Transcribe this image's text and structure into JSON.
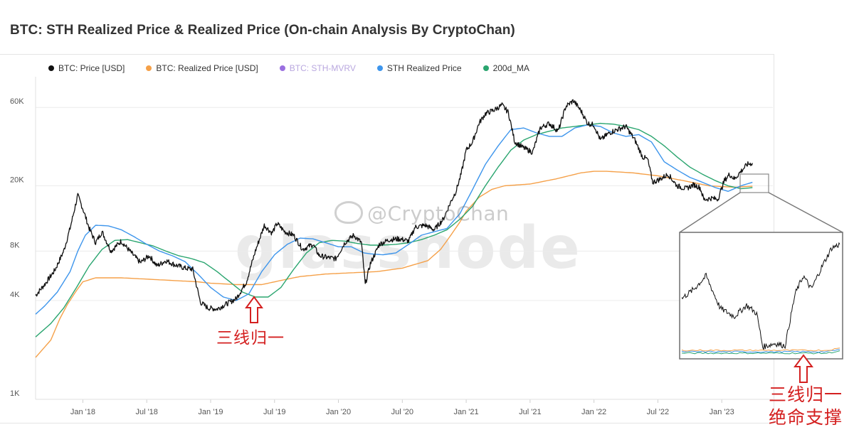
{
  "title": "BTC: STH Realized Price & Realized Price (On-chain Analysis By CryptoChan)",
  "watermark": "@CryptoChan",
  "ghost_watermark": "glassnode",
  "annotation_left": "三线归一",
  "annotation_right_line1": "三线归一",
  "annotation_right_line2": "绝命支撑",
  "colors": {
    "price": "#111111",
    "realized": "#f5a048",
    "sth_mvrv": "#9a6fe0",
    "sth_realized": "#3d95ec",
    "ma200": "#2aa56f",
    "annotation": "#d42020"
  },
  "chart_data": {
    "type": "line",
    "title": "BTC: STH Realized Price & Realized Price (On-chain Analysis By CryptoChan)",
    "yscale": "log",
    "ylim": [
      1000,
      100000
    ],
    "yticks": [
      {
        "label": "1K",
        "value": 1000
      },
      {
        "label": "4K",
        "value": 4000
      },
      {
        "label": "8K",
        "value": 8000
      },
      {
        "label": "20K",
        "value": 20000
      },
      {
        "label": "60K",
        "value": 60000
      }
    ],
    "xlim": [
      2017.63,
      2023.4
    ],
    "xticks": [
      {
        "label": "Jan '18",
        "value": 2018.0
      },
      {
        "label": "Jul '18",
        "value": 2018.5
      },
      {
        "label": "Jan '19",
        "value": 2019.0
      },
      {
        "label": "Jul '19",
        "value": 2019.5
      },
      {
        "label": "Jan '20",
        "value": 2020.0
      },
      {
        "label": "Jul '20",
        "value": 2020.5
      },
      {
        "label": "Jan '21",
        "value": 2021.0
      },
      {
        "label": "Jul '21",
        "value": 2021.5
      },
      {
        "label": "Jan '22",
        "value": 2022.0
      },
      {
        "label": "Jul '22",
        "value": 2022.5
      },
      {
        "label": "Jan '23",
        "value": 2023.0
      }
    ],
    "legend": [
      {
        "name": "BTC: Price [USD]",
        "color": "#111111"
      },
      {
        "name": "BTC: Realized Price [USD]",
        "color": "#f5a048"
      },
      {
        "name": "BTC: STH-MVRV",
        "color": "#9a6fe0"
      },
      {
        "name": "STH Realized Price",
        "color": "#3d95ec"
      },
      {
        "name": "200d_MA",
        "color": "#2aa56f"
      }
    ],
    "series": [
      {
        "name": "BTC: Price [USD]",
        "color": "#111111",
        "x": [
          2017.63,
          2017.7,
          2017.78,
          2017.85,
          2017.9,
          2017.96,
          2018.0,
          2018.05,
          2018.1,
          2018.15,
          2018.22,
          2018.3,
          2018.38,
          2018.45,
          2018.52,
          2018.58,
          2018.65,
          2018.72,
          2018.8,
          2018.86,
          2018.92,
          2018.98,
          2019.05,
          2019.12,
          2019.2,
          2019.28,
          2019.35,
          2019.42,
          2019.48,
          2019.52,
          2019.58,
          2019.65,
          2019.72,
          2019.8,
          2019.85,
          2019.92,
          2019.98,
          2020.05,
          2020.12,
          2020.18,
          2020.21,
          2020.25,
          2020.32,
          2020.4,
          2020.48,
          2020.55,
          2020.6,
          2020.68,
          2020.75,
          2020.82,
          2020.88,
          2020.92,
          2020.96,
          2021.0,
          2021.05,
          2021.1,
          2021.15,
          2021.22,
          2021.28,
          2021.33,
          2021.38,
          2021.45,
          2021.52,
          2021.58,
          2021.65,
          2021.72,
          2021.78,
          2021.84,
          2021.9,
          2021.95,
          2022.0,
          2022.05,
          2022.12,
          2022.18,
          2022.25,
          2022.32,
          2022.38,
          2022.42,
          2022.46,
          2022.52,
          2022.58,
          2022.65,
          2022.72,
          2022.78,
          2022.83,
          2022.86,
          2022.92,
          2022.97,
          2023.02,
          2023.06,
          2023.1,
          2023.15,
          2023.2,
          2023.24
        ],
        "values": [
          4300,
          5000,
          6100,
          8000,
          11000,
          17500,
          14500,
          11000,
          9000,
          10500,
          8000,
          9200,
          7800,
          6800,
          7500,
          6500,
          7000,
          6600,
          6300,
          6200,
          3900,
          3600,
          3550,
          3800,
          4100,
          5200,
          8000,
          11500,
          10300,
          11800,
          10500,
          10000,
          8200,
          8800,
          7500,
          7300,
          7200,
          9000,
          10000,
          9000,
          5000,
          6700,
          8800,
          9400,
          9500,
          9200,
          11200,
          11500,
          10800,
          12500,
          16000,
          18500,
          23500,
          33000,
          37000,
          48000,
          55000,
          58000,
          62000,
          56000,
          37000,
          34000,
          32000,
          45000,
          48000,
          43000,
          61000,
          66000,
          57000,
          48000,
          47000,
          38000,
          42000,
          44000,
          46000,
          38000,
          30000,
          29000,
          21000,
          22000,
          23500,
          20000,
          19200,
          20300,
          19500,
          16500,
          16800,
          16600,
          21500,
          23500,
          22000,
          24500,
          27000,
          27500
        ]
      },
      {
        "name": "BTC: Realized Price [USD]",
        "color": "#f5a048",
        "x": [
          2017.63,
          2017.75,
          2017.82,
          2017.88,
          2017.95,
          2018.0,
          2018.1,
          2018.3,
          2018.5,
          2018.7,
          2018.9,
          2019.0,
          2019.2,
          2019.4,
          2019.55,
          2019.7,
          2019.9,
          2020.1,
          2020.3,
          2020.5,
          2020.7,
          2020.8,
          2020.88,
          2020.95,
          2021.0,
          2021.1,
          2021.2,
          2021.3,
          2021.5,
          2021.7,
          2021.9,
          2022.0,
          2022.1,
          2022.3,
          2022.5,
          2022.7,
          2022.9,
          2023.0,
          2023.1,
          2023.24
        ],
        "values": [
          1800,
          2300,
          3100,
          3800,
          4600,
          5200,
          5500,
          5500,
          5400,
          5300,
          5200,
          5100,
          5000,
          5000,
          5300,
          5600,
          5800,
          5900,
          6000,
          6300,
          7000,
          8200,
          10000,
          12000,
          14000,
          17000,
          19000,
          20000,
          20500,
          22000,
          24000,
          24500,
          24500,
          24000,
          23000,
          21500,
          20000,
          19800,
          19600,
          19900
        ]
      },
      {
        "name": "STH Realized Price",
        "color": "#3d95ec",
        "x": [
          2017.63,
          2017.7,
          2017.8,
          2017.9,
          2017.96,
          2018.02,
          2018.1,
          2018.2,
          2018.3,
          2018.4,
          2018.5,
          2018.6,
          2018.7,
          2018.8,
          2018.9,
          2019.0,
          2019.1,
          2019.2,
          2019.3,
          2019.4,
          2019.5,
          2019.6,
          2019.7,
          2019.8,
          2019.9,
          2020.0,
          2020.1,
          2020.2,
          2020.25,
          2020.35,
          2020.45,
          2020.55,
          2020.65,
          2020.75,
          2020.85,
          2020.95,
          2021.05,
          2021.15,
          2021.25,
          2021.35,
          2021.45,
          2021.55,
          2021.65,
          2021.75,
          2021.85,
          2021.95,
          2022.05,
          2022.15,
          2022.25,
          2022.35,
          2022.45,
          2022.55,
          2022.65,
          2022.75,
          2022.85,
          2022.95,
          2023.05,
          2023.15,
          2023.24
        ],
        "values": [
          3300,
          3700,
          4500,
          6000,
          8000,
          10000,
          11500,
          11400,
          10800,
          9800,
          8800,
          8000,
          7500,
          6900,
          5800,
          4800,
          4200,
          4000,
          4400,
          6000,
          7600,
          8800,
          9600,
          9500,
          9000,
          8500,
          8500,
          7800,
          7700,
          7600,
          7800,
          8800,
          10000,
          10500,
          11000,
          13500,
          19000,
          27000,
          35000,
          44000,
          45000,
          42000,
          40000,
          40000,
          45000,
          47000,
          46000,
          42000,
          40000,
          41000,
          37000,
          28000,
          25000,
          22500,
          21000,
          19500,
          18500,
          20000,
          21000
        ]
      },
      {
        "name": "200d_MA",
        "color": "#2aa56f",
        "x": [
          2017.63,
          2017.75,
          2017.85,
          2017.95,
          2018.05,
          2018.15,
          2018.25,
          2018.35,
          2018.45,
          2018.55,
          2018.65,
          2018.75,
          2018.85,
          2018.95,
          2019.05,
          2019.15,
          2019.25,
          2019.35,
          2019.45,
          2019.55,
          2019.65,
          2019.75,
          2019.85,
          2019.95,
          2020.05,
          2020.15,
          2020.25,
          2020.35,
          2020.45,
          2020.55,
          2020.65,
          2020.75,
          2020.85,
          2020.95,
          2021.05,
          2021.15,
          2021.25,
          2021.35,
          2021.45,
          2021.55,
          2021.65,
          2021.75,
          2021.85,
          2021.95,
          2022.05,
          2022.15,
          2022.25,
          2022.35,
          2022.45,
          2022.55,
          2022.65,
          2022.75,
          2022.85,
          2022.95,
          2023.05,
          2023.15,
          2023.24
        ],
        "values": [
          2400,
          2900,
          3600,
          4800,
          6500,
          8200,
          9300,
          9400,
          9000,
          8600,
          8000,
          7500,
          7200,
          6800,
          6000,
          5200,
          4500,
          4200,
          4200,
          4800,
          6200,
          7800,
          9000,
          9300,
          9200,
          8900,
          8700,
          8700,
          8800,
          9000,
          9400,
          10000,
          10800,
          12500,
          15000,
          20000,
          26000,
          33000,
          38000,
          41000,
          43000,
          45000,
          46000,
          47000,
          48000,
          47500,
          46000,
          44000,
          40000,
          35000,
          30000,
          26000,
          23500,
          21500,
          20000,
          19200,
          19500
        ]
      }
    ]
  }
}
